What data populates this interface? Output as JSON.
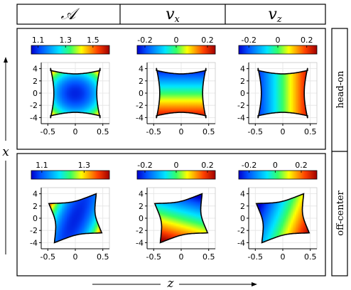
{
  "columns": [
    {
      "main": "𝒜",
      "sub": ""
    },
    {
      "main": "v",
      "sub": "x"
    },
    {
      "main": "v",
      "sub": "z"
    }
  ],
  "rows": [
    "head-on",
    "off-center"
  ],
  "xlabel": "z",
  "ylabel": "x",
  "chart_data": [
    {
      "type": "heatmap",
      "row": "head-on",
      "quantity": "A",
      "colorbar_ticks": [
        "1.1",
        "1.3",
        "1.5"
      ],
      "crange": [
        1.05,
        1.62
      ],
      "x_ticks": [
        "-0.5",
        "0",
        "0.5"
      ],
      "y_ticks": [
        "4",
        "2",
        "0",
        "-2",
        "-4"
      ],
      "xlim": [
        -0.62,
        0.62
      ],
      "ylim": [
        -5,
        5
      ]
    },
    {
      "type": "heatmap",
      "row": "head-on",
      "quantity": "vx",
      "colorbar_ticks": [
        "-0.2",
        "0",
        "0.2"
      ],
      "crange": [
        -0.25,
        0.25
      ],
      "x_ticks": [
        "-0.5",
        "0",
        "0.5"
      ],
      "y_ticks": [
        "4",
        "2",
        "0",
        "-2",
        "-4"
      ],
      "xlim": [
        -0.62,
        0.62
      ],
      "ylim": [
        -5,
        5
      ]
    },
    {
      "type": "heatmap",
      "row": "head-on",
      "quantity": "vz",
      "colorbar_ticks": [
        "-0.2",
        "0",
        "0.2"
      ],
      "crange": [
        -0.27,
        0.27
      ],
      "x_ticks": [
        "-0.5",
        "0",
        "0.5"
      ],
      "y_ticks": [
        "4",
        "2",
        "0",
        "-2",
        "-4"
      ],
      "xlim": [
        -0.62,
        0.62
      ],
      "ylim": [
        -5,
        5
      ]
    },
    {
      "type": "heatmap",
      "row": "off-center",
      "quantity": "A",
      "colorbar_ticks": [
        "1.1",
        "1.3"
      ],
      "crange": [
        1.05,
        1.42
      ],
      "x_ticks": [
        "-0.5",
        "0",
        "0.5"
      ],
      "y_ticks": [
        "4",
        "2",
        "0",
        "-2",
        "-4"
      ],
      "xlim": [
        -0.62,
        0.62
      ],
      "ylim": [
        -5,
        5
      ]
    },
    {
      "type": "heatmap",
      "row": "off-center",
      "quantity": "vx",
      "colorbar_ticks": [
        "-0.2",
        "0",
        "0.2"
      ],
      "crange": [
        -0.25,
        0.25
      ],
      "x_ticks": [
        "-0.5",
        "0",
        "0.5"
      ],
      "y_ticks": [
        "4",
        "2",
        "0",
        "-2",
        "-4"
      ],
      "xlim": [
        -0.62,
        0.62
      ],
      "ylim": [
        -5,
        5
      ]
    },
    {
      "type": "heatmap",
      "row": "off-center",
      "quantity": "vz",
      "colorbar_ticks": [
        "-0.2",
        "0",
        "0.2"
      ],
      "crange": [
        -0.28,
        0.32
      ],
      "x_ticks": [
        "-0.5",
        "0",
        "0.5"
      ],
      "y_ticks": [
        "4",
        "2",
        "0",
        "-2",
        "-4"
      ],
      "xlim": [
        -0.62,
        0.62
      ],
      "ylim": [
        -5,
        5
      ]
    }
  ]
}
